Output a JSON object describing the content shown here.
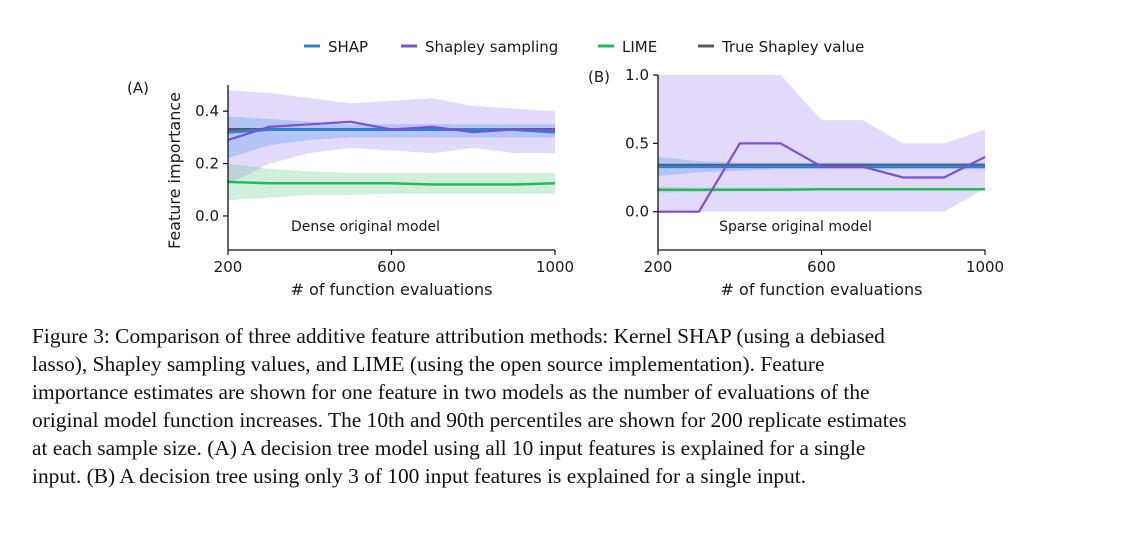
{
  "legend": [
    {
      "label": "SHAP",
      "color": "#2f7fd2"
    },
    {
      "label": "Shapley sampling",
      "color": "#7c4fd6"
    },
    {
      "label": "LIME",
      "color": "#25b85c"
    },
    {
      "label": "True Shapley value",
      "color": "#5a5a5a"
    }
  ],
  "chart_data": [
    {
      "type": "line",
      "panel_label": "(A)",
      "annotation": "Dense original model",
      "xlabel": "# of function evaluations",
      "ylabel": "Feature importance",
      "xlim": [
        200,
        1000
      ],
      "ylim": [
        -0.13,
        0.5
      ],
      "xticks": [
        "200",
        "600",
        "1000"
      ],
      "xtick_values": [
        200,
        600,
        1000
      ],
      "yticks": [
        "0.0",
        "0.2",
        "0.4"
      ],
      "ytick_values": [
        0.0,
        0.2,
        0.4
      ],
      "x": [
        200,
        300,
        400,
        500,
        600,
        700,
        800,
        900,
        1000
      ],
      "series": [
        {
          "name": "Shapley sampling",
          "color": "#7c4fd6",
          "values": [
            0.29,
            0.34,
            0.35,
            0.36,
            0.33,
            0.34,
            0.32,
            0.33,
            0.33
          ],
          "lower": [
            0.12,
            0.2,
            0.24,
            0.26,
            0.25,
            0.24,
            0.26,
            0.24,
            0.24
          ],
          "upper": [
            0.48,
            0.47,
            0.45,
            0.43,
            0.44,
            0.45,
            0.42,
            0.41,
            0.4
          ]
        },
        {
          "name": "SHAP",
          "color": "#2f7fd2",
          "values": [
            0.32,
            0.33,
            0.33,
            0.33,
            0.33,
            0.33,
            0.33,
            0.33,
            0.32
          ],
          "lower": [
            0.22,
            0.27,
            0.29,
            0.3,
            0.3,
            0.3,
            0.3,
            0.3,
            0.3
          ],
          "upper": [
            0.38,
            0.37,
            0.36,
            0.35,
            0.35,
            0.35,
            0.35,
            0.35,
            0.35
          ]
        },
        {
          "name": "LIME",
          "color": "#25b85c",
          "values": [
            0.13,
            0.125,
            0.125,
            0.125,
            0.125,
            0.12,
            0.12,
            0.12,
            0.125
          ],
          "lower": [
            0.06,
            0.07,
            0.08,
            0.08,
            0.085,
            0.085,
            0.085,
            0.085,
            0.085
          ],
          "upper": [
            0.2,
            0.18,
            0.17,
            0.165,
            0.165,
            0.165,
            0.165,
            0.165,
            0.165
          ]
        },
        {
          "name": "True Shapley value",
          "color": "#5a5a5a",
          "values": [
            0.33,
            0.33,
            0.33,
            0.33,
            0.33,
            0.33,
            0.33,
            0.33,
            0.33
          ]
        }
      ]
    },
    {
      "type": "line",
      "panel_label": "(B)",
      "annotation": "Sparse original model",
      "xlabel": "# of function evaluations",
      "ylabel": "",
      "xlim": [
        200,
        1000
      ],
      "ylim": [
        -0.28,
        1.0
      ],
      "xticks": [
        "200",
        "600",
        "1000"
      ],
      "xtick_values": [
        200,
        600,
        1000
      ],
      "yticks": [
        "0.0",
        "0.5",
        "1.0"
      ],
      "ytick_values": [
        0.0,
        0.5,
        1.0
      ],
      "x": [
        200,
        300,
        400,
        500,
        600,
        700,
        800,
        900,
        1000
      ],
      "series": [
        {
          "name": "Shapley sampling",
          "color": "#7c4fd6",
          "values": [
            0.0,
            0.0,
            0.5,
            0.5,
            0.33,
            0.33,
            0.25,
            0.25,
            0.4
          ],
          "lower": [
            0.0,
            0.0,
            0.0,
            0.0,
            0.0,
            0.0,
            0.0,
            0.0,
            0.17
          ],
          "upper": [
            1.0,
            1.0,
            1.0,
            1.0,
            0.67,
            0.67,
            0.5,
            0.5,
            0.6
          ]
        },
        {
          "name": "SHAP",
          "color": "#2f7fd2",
          "values": [
            0.33,
            0.33,
            0.33,
            0.33,
            0.33,
            0.33,
            0.33,
            0.33,
            0.33
          ],
          "lower": [
            0.26,
            0.29,
            0.3,
            0.31,
            0.31,
            0.31,
            0.31,
            0.31,
            0.31
          ],
          "upper": [
            0.4,
            0.37,
            0.36,
            0.36,
            0.36,
            0.36,
            0.36,
            0.36,
            0.36
          ]
        },
        {
          "name": "LIME",
          "color": "#25b85c",
          "values": [
            0.16,
            0.16,
            0.16,
            0.16,
            0.165,
            0.165,
            0.165,
            0.165,
            0.165
          ],
          "lower": [
            0.14,
            0.145,
            0.15,
            0.15,
            0.155,
            0.155,
            0.155,
            0.155,
            0.155
          ],
          "upper": [
            0.18,
            0.175,
            0.175,
            0.175,
            0.175,
            0.175,
            0.175,
            0.175,
            0.175
          ]
        },
        {
          "name": "True Shapley value",
          "color": "#5a5a5a",
          "values": [
            0.34,
            0.34,
            0.34,
            0.34,
            0.34,
            0.34,
            0.34,
            0.34,
            0.34
          ]
        }
      ]
    }
  ],
  "caption": {
    "lines": [
      "Figure 3: Comparison of three additive feature attribution methods: Kernel SHAP (using a debiased",
      "lasso), Shapley sampling values, and LIME (using the open source implementation). Feature",
      "importance estimates are shown for one feature in two models as the number of evaluations of the",
      "original model function increases. The 10th and 90th percentiles are shown for 200 replicate estimates",
      "at each sample size. (A) A decision tree model using all 10 input features is explained for a single",
      "input. (B) A decision tree using only 3 of 100 input features is explained for a single input."
    ]
  }
}
